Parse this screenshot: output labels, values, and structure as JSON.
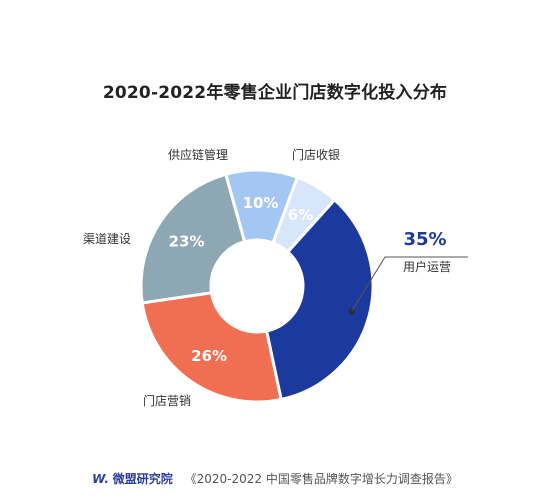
{
  "chart_data": {
    "type": "pie",
    "title": "2020-2022年零售企业门店数字化投入分布",
    "categories": [
      "用户运营",
      "门店营销",
      "渠道建设",
      "供应链管理",
      "门店收银"
    ],
    "values": [
      35,
      26,
      23,
      10,
      6
    ],
    "value_labels": [
      "35%",
      "26%",
      "23%",
      "10%",
      "6%"
    ],
    "colors": [
      "#1c3a9e",
      "#f06e52",
      "#8da7b5",
      "#a4c6f2",
      "#d7e6fb"
    ],
    "donut": true
  },
  "footer": {
    "logo": "W.",
    "brand": "微盟研究院",
    "source": "《2020-2022 中国零售品牌数字增长力调查报告》"
  }
}
